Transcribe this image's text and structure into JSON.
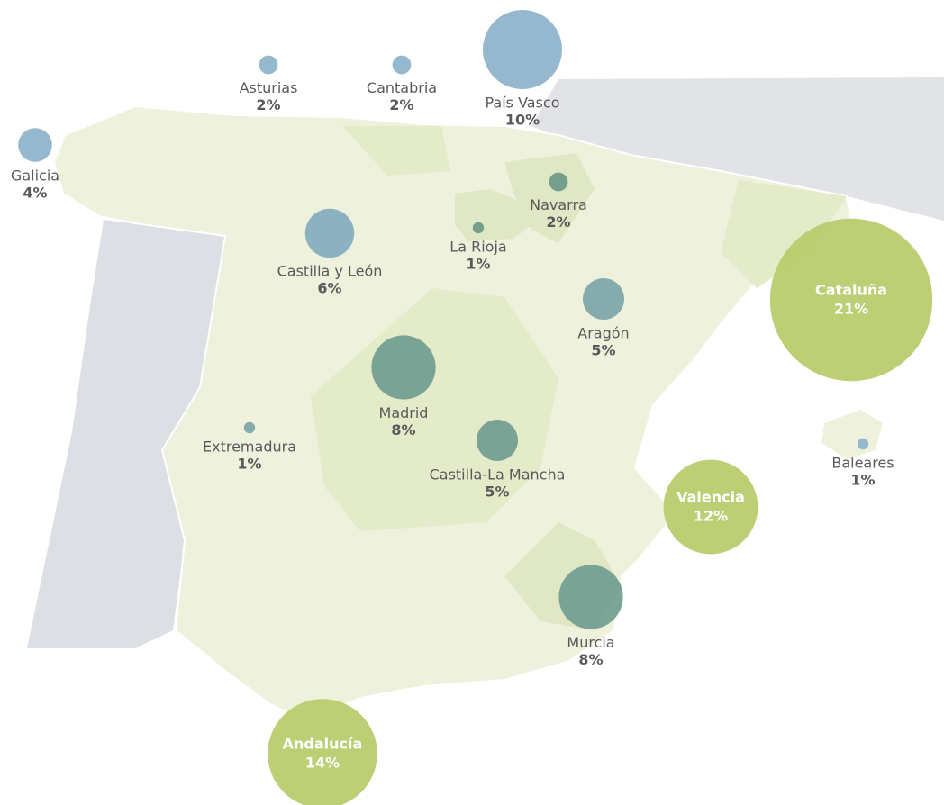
{
  "regions": [
    {
      "name": "Galicia",
      "value": 4,
      "value_label": "4%",
      "color": "#8fb4cc"
    },
    {
      "name": "Asturias",
      "value": 2,
      "value_label": "2%",
      "color": "#8fb4cc"
    },
    {
      "name": "Cantabria",
      "value": 2,
      "value_label": "2%",
      "color": "#8fb4cc"
    },
    {
      "name": "País Vasco",
      "value": 10,
      "value_label": "10%",
      "color": "#8fb4cc"
    },
    {
      "name": "Navarra",
      "value": 2,
      "value_label": "2%",
      "color": "#6f9a8a"
    },
    {
      "name": "La Rioja",
      "value": 1,
      "value_label": "1%",
      "color": "#6f9a8a"
    },
    {
      "name": "Castilla y León",
      "value": 6,
      "value_label": "6%",
      "color": "#86aec0"
    },
    {
      "name": "Aragón",
      "value": 5,
      "value_label": "5%",
      "color": "#7fa6aa"
    },
    {
      "name": "Cataluña",
      "value": 21,
      "value_label": "21%",
      "color": "#b8cc6e"
    },
    {
      "name": "Madrid",
      "value": 8,
      "value_label": "8%",
      "color": "#73a092"
    },
    {
      "name": "Extremadura",
      "value": 1,
      "value_label": "1%",
      "color": "#7fa6aa"
    },
    {
      "name": "Castilla-La Mancha",
      "value": 5,
      "value_label": "5%",
      "color": "#73a092"
    },
    {
      "name": "Valencia",
      "value": 12,
      "value_label": "12%",
      "color": "#b8cc6e"
    },
    {
      "name": "Baleares",
      "value": 1,
      "value_label": "1%",
      "color": "#8fb4cc"
    },
    {
      "name": "Murcia",
      "value": 8,
      "value_label": "8%",
      "color": "#73a092"
    },
    {
      "name": "Andalucía",
      "value": 14,
      "value_label": "14%",
      "color": "#b8cc6e"
    }
  ]
}
